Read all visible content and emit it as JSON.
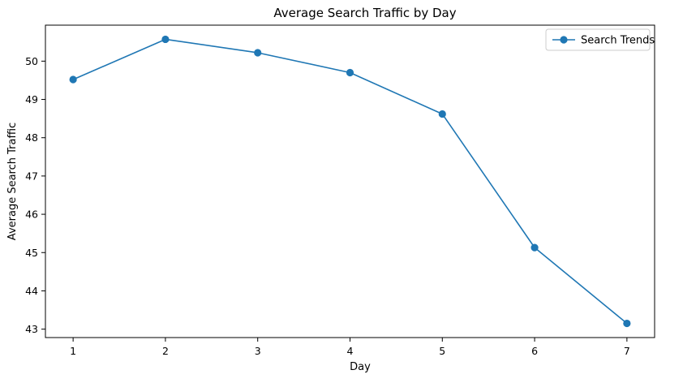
{
  "chart_data": {
    "type": "line",
    "title": "Average Search Traffic by Day",
    "xlabel": "Day",
    "ylabel": "Average Search Traffic",
    "x": [
      1,
      2,
      3,
      4,
      5,
      6,
      7
    ],
    "series": [
      {
        "name": "Search Trends",
        "values": [
          49.52,
          50.57,
          50.22,
          49.7,
          48.62,
          45.13,
          43.15
        ],
        "color": "#1f77b4",
        "marker": "circle"
      }
    ],
    "xticks": [
      "1",
      "2",
      "3",
      "4",
      "5",
      "6",
      "7"
    ],
    "yticks": [
      "43",
      "44",
      "45",
      "46",
      "47",
      "48",
      "49",
      "50"
    ],
    "xlim": [
      0.7,
      7.3
    ],
    "ylim": [
      42.78,
      50.94
    ],
    "grid": false,
    "legend_position": "top-right"
  }
}
